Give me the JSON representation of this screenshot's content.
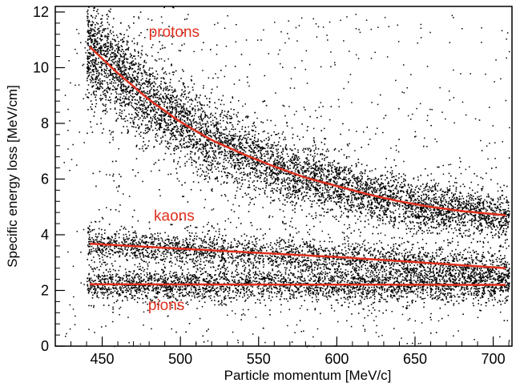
{
  "chart_data": {
    "type": "scatter",
    "xlabel": "Particle momentum [MeV/c]",
    "ylabel": "Specific energy loss [MeV/cm]",
    "xlim": [
      420,
      712
    ],
    "ylim": [
      0,
      12.2
    ],
    "x_ticks": [
      450,
      500,
      550,
      600,
      650,
      700
    ],
    "y_ticks": [
      0,
      2,
      4,
      6,
      8,
      10,
      12
    ],
    "grid": false,
    "colors": {
      "points": "#000000",
      "fit": "#e0301e",
      "labels": "#e0301e"
    },
    "annotations": [
      {
        "text": "protons",
        "x": 496,
        "y": 11.1
      },
      {
        "text": "kaons",
        "x": 496,
        "y": 4.5
      },
      {
        "text": "pions",
        "x": 491,
        "y": 1.3
      }
    ],
    "bands": [
      {
        "name": "protons",
        "x_range": [
          440,
          710
        ],
        "approx_density": 6000,
        "fit": {
          "x": [
            442,
            460,
            480,
            500,
            520,
            540,
            560,
            580,
            600,
            620,
            640,
            660,
            680,
            708
          ],
          "y": [
            10.75,
            9.8,
            8.85,
            8.05,
            7.4,
            6.9,
            6.45,
            6.05,
            5.75,
            5.45,
            5.2,
            5.0,
            4.85,
            4.7
          ]
        }
      },
      {
        "name": "kaons",
        "x_range": [
          440,
          710
        ],
        "approx_density": 2600,
        "fit": {
          "x": [
            442,
            500,
            550,
            600,
            650,
            708
          ],
          "y": [
            3.68,
            3.5,
            3.35,
            3.2,
            3.02,
            2.8
          ]
        }
      },
      {
        "name": "pions",
        "x_range": [
          440,
          710
        ],
        "approx_density": 3000,
        "fit": {
          "x": [
            442,
            708
          ],
          "y": [
            2.22,
            2.2
          ]
        }
      }
    ]
  }
}
